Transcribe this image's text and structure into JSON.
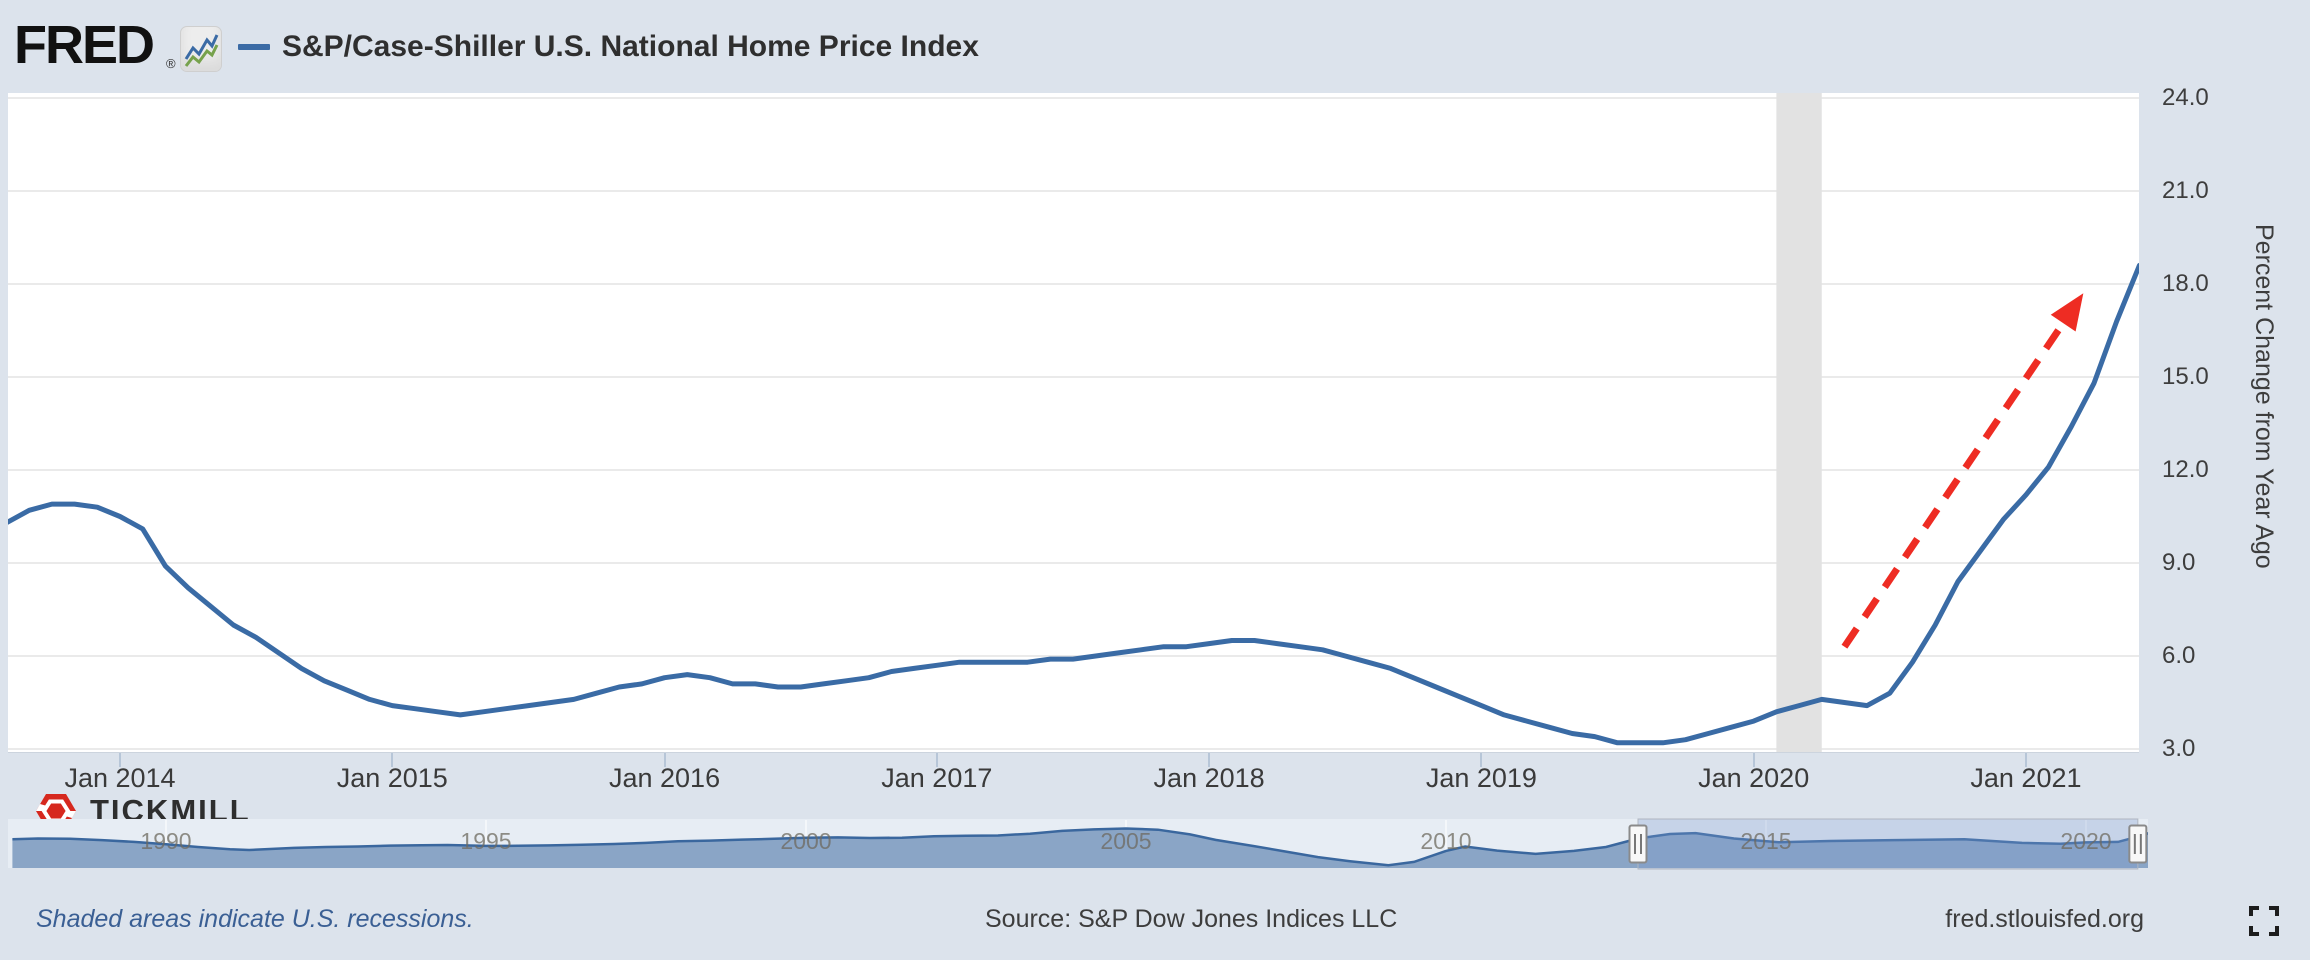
{
  "header": {
    "logo": "FRED",
    "logo_reg": "®",
    "title": "S&P/Case-Shiller U.S. National Home Price Index"
  },
  "watermark": {
    "brand": "TICKMILL"
  },
  "y_axis": {
    "title": "Percent Change from Year Ago",
    "ticks": [
      "24.0",
      "21.0",
      "18.0",
      "15.0",
      "12.0",
      "9.0",
      "6.0",
      "3.0"
    ]
  },
  "x_axis": {
    "ticks": [
      "Jan 2014",
      "Jan 2015",
      "Jan 2016",
      "Jan 2017",
      "Jan 2018",
      "Jan 2019",
      "Jan 2020",
      "Jan 2021"
    ]
  },
  "mini_axis": {
    "ticks": [
      "1990",
      "1995",
      "2000",
      "2005",
      "2010",
      "2015",
      "2020"
    ]
  },
  "footer": {
    "note": "Shaded areas indicate U.S. recessions.",
    "source": "Source: S&P Dow Jones Indices LLC",
    "site": "fred.stlouisfed.org"
  },
  "colors": {
    "page_bg": "#dce3ec",
    "plot_bg": "#ffffff",
    "gridline": "#e4e4e4",
    "line_blue": "#3a6ba5",
    "recession_band": "#e2e2e2",
    "arrow_red": "#ee2c23",
    "mini_fill": "#8aa5c6",
    "mini_selection": "rgba(122,152,205,0.30)",
    "handle_fill": "#f8f8f8",
    "handle_border": "#8a8a8a",
    "tickmill_red": "#d6281e"
  },
  "chart_data": {
    "type": "line",
    "title": "S&P/Case-Shiller U.S. National Home Price Index",
    "ylabel": "Percent Change from Year Ago",
    "ylim": [
      3,
      24
    ],
    "ytick_step": 3,
    "grid": "horizontal",
    "unit": "percent",
    "start_month": "2013-08",
    "end_month": "2021-06",
    "values": [
      10.3,
      10.7,
      10.9,
      10.9,
      10.8,
      10.5,
      10.1,
      8.9,
      8.2,
      7.6,
      7.0,
      6.6,
      6.1,
      5.6,
      5.2,
      4.9,
      4.6,
      4.4,
      4.3,
      4.2,
      4.1,
      4.2,
      4.3,
      4.4,
      4.5,
      4.6,
      4.8,
      5.0,
      5.1,
      5.3,
      5.4,
      5.3,
      5.1,
      5.1,
      5.0,
      5.0,
      5.1,
      5.2,
      5.3,
      5.5,
      5.6,
      5.7,
      5.8,
      5.8,
      5.8,
      5.8,
      5.9,
      5.9,
      6.0,
      6.1,
      6.2,
      6.3,
      6.3,
      6.4,
      6.5,
      6.5,
      6.4,
      6.3,
      6.2,
      6.0,
      5.8,
      5.6,
      5.3,
      5.0,
      4.7,
      4.4,
      4.1,
      3.9,
      3.7,
      3.5,
      3.4,
      3.2,
      3.2,
      3.2,
      3.3,
      3.5,
      3.7,
      3.9,
      4.2,
      4.4,
      4.6,
      4.5,
      4.4,
      4.8,
      5.8,
      7.0,
      8.4,
      9.4,
      10.4,
      11.2,
      12.1,
      13.4,
      14.8,
      16.8,
      18.6
    ],
    "recession_band": {
      "start": "2020-02",
      "end": "2020-04"
    },
    "trend_arrow": {
      "start": {
        "month": "2020-05",
        "value": 6.3
      },
      "end": {
        "month": "2021-03",
        "value": 17.7
      }
    },
    "mini": {
      "type": "area",
      "points": [
        [
          1987.6,
          6.5
        ],
        [
          1988,
          7.0
        ],
        [
          1988.5,
          6.8
        ],
        [
          1989,
          5.8
        ],
        [
          1989.5,
          4.5
        ],
        [
          1990,
          2.8
        ],
        [
          1990.5,
          0.8
        ],
        [
          1991,
          -0.8
        ],
        [
          1991.3,
          -1.4
        ],
        [
          1992,
          0.2
        ],
        [
          1992.5,
          0.8
        ],
        [
          1993,
          1.2
        ],
        [
          1993.5,
          1.8
        ],
        [
          1994,
          2.1
        ],
        [
          1994.4,
          2.3
        ],
        [
          1995,
          1.6
        ],
        [
          1995.5,
          1.7
        ],
        [
          1996,
          2.0
        ],
        [
          1996.5,
          2.4
        ],
        [
          1997,
          3.0
        ],
        [
          1997.5,
          3.8
        ],
        [
          1998,
          5.0
        ],
        [
          1998.5,
          5.5
        ],
        [
          1999,
          6.2
        ],
        [
          1999.5,
          6.8
        ],
        [
          2000,
          7.6
        ],
        [
          2000.5,
          7.8
        ],
        [
          2001,
          7.4
        ],
        [
          2001.5,
          7.6
        ],
        [
          2002,
          8.6
        ],
        [
          2002.5,
          9.0
        ],
        [
          2003,
          9.2
        ],
        [
          2003.5,
          10.5
        ],
        [
          2004,
          12.5
        ],
        [
          2004.5,
          13.6
        ],
        [
          2005,
          14.3
        ],
        [
          2005.5,
          13.4
        ],
        [
          2006,
          10.0
        ],
        [
          2006.4,
          6.0
        ],
        [
          2007,
          1.5
        ],
        [
          2007.5,
          -2.5
        ],
        [
          2008,
          -6.5
        ],
        [
          2008.5,
          -9.5
        ],
        [
          2009.1,
          -12.5
        ],
        [
          2009.5,
          -10.0
        ],
        [
          2010,
          -2.0
        ],
        [
          2010.3,
          1.2
        ],
        [
          2010.8,
          -1.8
        ],
        [
          2011.4,
          -4.2
        ],
        [
          2012,
          -2.0
        ],
        [
          2012.5,
          0.8
        ],
        [
          2013,
          7.0
        ],
        [
          2013.5,
          10.3
        ],
        [
          2013.9,
          10.9
        ],
        [
          2014.5,
          7.0
        ],
        [
          2015.2,
          4.3
        ],
        [
          2016,
          5.2
        ],
        [
          2017,
          5.8
        ],
        [
          2018.1,
          6.4
        ],
        [
          2019,
          3.8
        ],
        [
          2019.6,
          3.2
        ],
        [
          2020,
          4.2
        ],
        [
          2020.5,
          4.5
        ],
        [
          2020.9,
          9.5
        ],
        [
          2021.4,
          18.6
        ]
      ],
      "selection": {
        "start_year": 2013.0,
        "end_year": 2020.81
      }
    }
  }
}
